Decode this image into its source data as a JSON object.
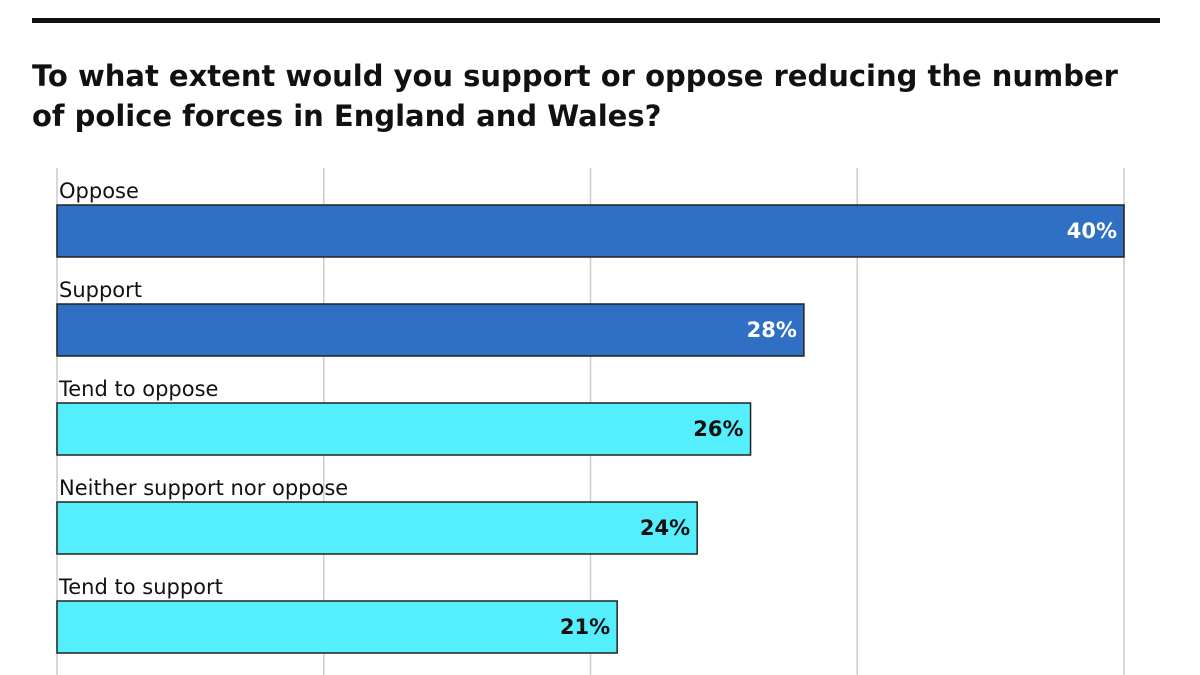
{
  "chart_data": {
    "type": "bar",
    "orientation": "horizontal",
    "title": "To what extent would you support or oppose reducing the number of police forces in England and Wales?",
    "categories": [
      "Oppose",
      "Support",
      "Tend to oppose",
      "Neither support nor oppose",
      "Tend to support"
    ],
    "values": [
      40,
      28,
      26,
      24,
      21
    ],
    "value_labels": [
      "40%",
      "28%",
      "26%",
      "24%",
      "21%"
    ],
    "colors": [
      "#3070c4",
      "#3070c4",
      "#55eefc",
      "#55eefc",
      "#55eefc"
    ],
    "xlim": [
      0,
      40
    ],
    "xticks": [
      0,
      10,
      20,
      30,
      40
    ],
    "grid": true
  }
}
